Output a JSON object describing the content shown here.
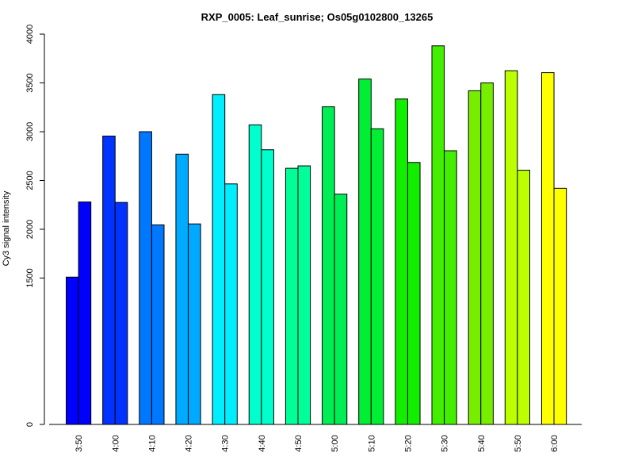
{
  "chart_data": {
    "type": "bar",
    "title": "RXP_0005: Leaf_sunrise; Os05g0102800_13265",
    "xlabel": "",
    "ylabel": "Cy3 signal intensity",
    "categories": [
      "3:50",
      "4:00",
      "4:10",
      "4:20",
      "4:30",
      "4:40",
      "4:50",
      "5:00",
      "5:10",
      "5:20",
      "5:30",
      "5:40",
      "5:50",
      "6:00"
    ],
    "series": [
      {
        "values": [
          1510,
          2955,
          3000,
          2770,
          3380,
          3070,
          2625,
          3255,
          3540,
          3335,
          3880,
          3420,
          3625,
          3605
        ]
      },
      {
        "values": [
          2280,
          2275,
          2045,
          2055,
          2465,
          2815,
          2650,
          2360,
          3030,
          2685,
          2805,
          3500,
          2605,
          2420
        ]
      }
    ],
    "colors": [
      "#0000FF",
      "#0033FF",
      "#0077FF",
      "#00AAFF",
      "#00EEFF",
      "#00FFCC",
      "#00FF99",
      "#00EE55",
      "#00EE33",
      "#11EE00",
      "#44EE00",
      "#77EE00",
      "#BBFF00",
      "#FFFF00"
    ],
    "yticks": [
      0,
      1500,
      2000,
      2500,
      3000,
      3500,
      4000
    ],
    "ylim": [
      0,
      4000
    ],
    "grid": false,
    "legend": "none"
  }
}
